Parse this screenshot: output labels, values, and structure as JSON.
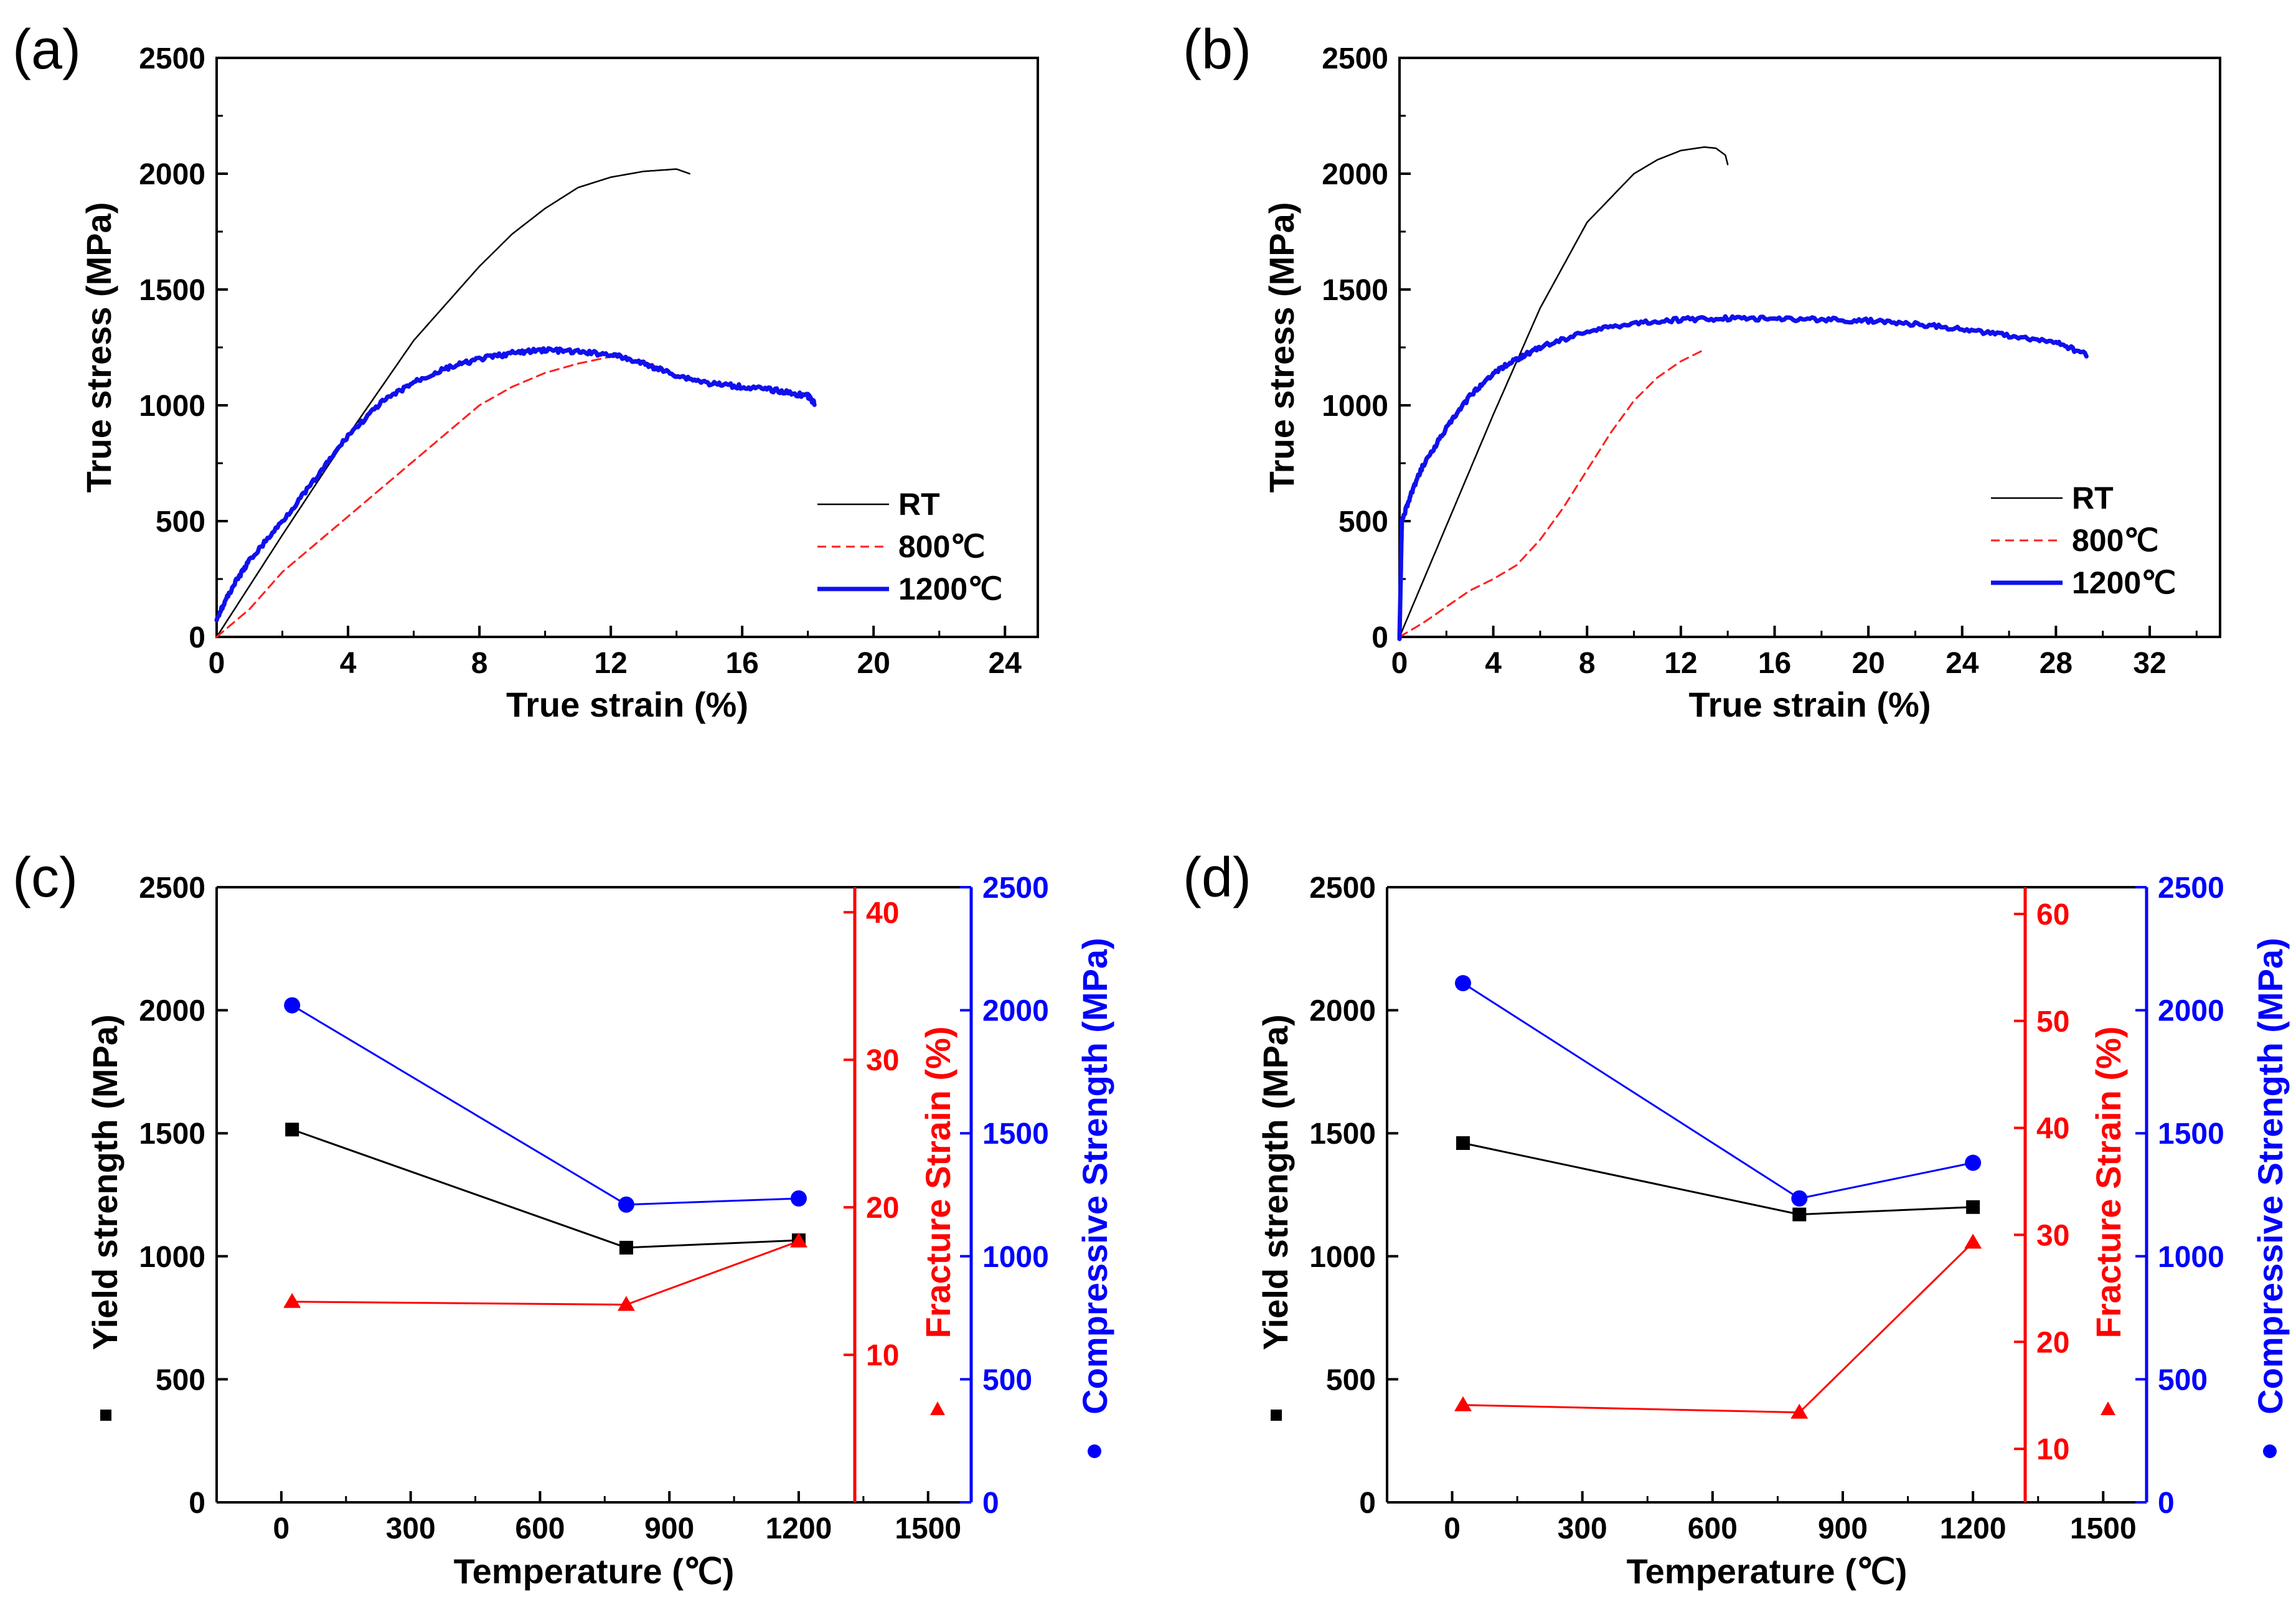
{
  "chart_data": [
    {
      "type": "line",
      "panel_label": "(a)",
      "xlabel": "True strain (%)",
      "ylabel": "True stress (MPa)",
      "xlim": [
        0,
        25
      ],
      "ylim": [
        0,
        2500
      ],
      "xticks": [
        "0",
        "4",
        "8",
        "12",
        "16",
        "20",
        "24"
      ],
      "yticks": [
        "0",
        "500",
        "1000",
        "1500",
        "2000",
        "2500"
      ],
      "legend_position": "bottom-right",
      "series": [
        {
          "name": "RT",
          "color": "#000000",
          "style": "solid",
          "x": [
            0,
            2,
            4,
            6,
            8,
            9,
            10,
            11,
            12,
            13,
            14,
            14.4
          ],
          "y": [
            0,
            440,
            870,
            1280,
            1600,
            1740,
            1850,
            1940,
            1985,
            2010,
            2020,
            2000
          ]
        },
        {
          "name": "800℃",
          "color": "#ff2020",
          "style": "dashed",
          "x": [
            0,
            1,
            2,
            4,
            6,
            7,
            8,
            9,
            10,
            11,
            12,
            13,
            14
          ],
          "y": [
            0,
            120,
            280,
            520,
            760,
            880,
            1000,
            1080,
            1140,
            1180,
            1210,
            1190,
            1130
          ]
        },
        {
          "name": "1200℃",
          "color": "#1010ee",
          "style": "thick",
          "x": [
            0,
            0.5,
            1,
            2,
            3,
            4,
            5,
            6,
            7,
            8,
            9,
            10,
            11,
            12,
            13,
            14,
            15,
            16,
            17,
            18,
            18.2
          ],
          "y": [
            80,
            220,
            330,
            500,
            680,
            870,
            1010,
            1100,
            1160,
            1200,
            1225,
            1240,
            1230,
            1220,
            1180,
            1130,
            1095,
            1080,
            1065,
            1040,
            1010
          ]
        }
      ]
    },
    {
      "type": "line",
      "panel_label": "(b)",
      "xlabel": "True strain (%)",
      "ylabel": "True stress (MPa)",
      "xlim": [
        0,
        35
      ],
      "ylim": [
        0,
        2500
      ],
      "xticks": [
        "0",
        "4",
        "8",
        "12",
        "16",
        "20",
        "24",
        "28",
        "32"
      ],
      "yticks": [
        "0",
        "500",
        "1000",
        "1500",
        "2000",
        "2500"
      ],
      "legend_position": "bottom-right",
      "series": [
        {
          "name": "RT",
          "color": "#000000",
          "style": "solid",
          "x": [
            0,
            2,
            4,
            6,
            8,
            10,
            11,
            12,
            13,
            13.5,
            13.9,
            14
          ],
          "y": [
            0,
            480,
            960,
            1420,
            1790,
            2000,
            2060,
            2100,
            2115,
            2110,
            2080,
            2040
          ]
        },
        {
          "name": "800℃",
          "color": "#ff2020",
          "style": "dashed",
          "x": [
            0,
            1,
            2,
            3,
            4,
            5,
            6,
            7,
            8,
            9,
            10,
            11,
            12,
            13
          ],
          "y": [
            0,
            60,
            130,
            200,
            250,
            310,
            420,
            560,
            720,
            880,
            1020,
            1120,
            1190,
            1240
          ]
        },
        {
          "name": "1200℃",
          "color": "#1010ee",
          "style": "thick",
          "x": [
            0,
            0.1,
            0.5,
            1,
            2,
            3,
            4,
            5,
            6,
            8,
            10,
            12,
            14,
            16,
            18,
            20,
            22,
            24,
            26,
            28,
            29.3
          ],
          "y": [
            0,
            500,
            620,
            740,
            900,
            1040,
            1140,
            1200,
            1250,
            1320,
            1355,
            1370,
            1375,
            1375,
            1370,
            1365,
            1350,
            1330,
            1300,
            1270,
            1220
          ]
        }
      ]
    },
    {
      "type": "line",
      "panel_label": "(c)",
      "xlabel": "Temperature (℃)",
      "ylabel_left": "Yield strength (MPa)",
      "ylabel_fracture": "Fracture Strain (%)",
      "ylabel_compressive": "Compressive Strength (MPa)",
      "xlim": [
        -150,
        1600
      ],
      "ylim_left": [
        0,
        2500
      ],
      "ylim_fracture": [
        0,
        41.7
      ],
      "ylim_compressive": [
        0,
        2500
      ],
      "xticks": [
        "0",
        "300",
        "600",
        "900",
        "1200",
        "1500"
      ],
      "yticks_left": [
        "0",
        "500",
        "1000",
        "1500",
        "2000",
        "2500"
      ],
      "yticks_fracture": [
        "10",
        "20",
        "30",
        "40"
      ],
      "yticks_compressive": [
        "0",
        "500",
        "1000",
        "1500",
        "2000",
        "2500"
      ],
      "series": [
        {
          "name": "Yield strength",
          "color": "#000000",
          "marker": "square",
          "axis": "left",
          "x": [
            25,
            800,
            1200
          ],
          "y": [
            1515,
            1035,
            1065
          ]
        },
        {
          "name": "Fracture Strain",
          "color": "#ff0000",
          "marker": "triangle",
          "axis": "fracture",
          "x": [
            25,
            800,
            1200
          ],
          "y": [
            13.6,
            13.4,
            17.7
          ]
        },
        {
          "name": "Compressive Strength",
          "color": "#0000ff",
          "marker": "circle",
          "axis": "compressive",
          "x": [
            25,
            800,
            1200
          ],
          "y": [
            2020,
            1210,
            1235
          ]
        }
      ]
    },
    {
      "type": "line",
      "panel_label": "(d)",
      "xlabel": "Temperature (℃)",
      "ylabel_left": "Yield strength (MPa)",
      "ylabel_fracture": "Fracture Strain (%)",
      "ylabel_compressive": "Compressive Strength (MPa)",
      "xlim": [
        -150,
        1600
      ],
      "ylim_left": [
        0,
        2500
      ],
      "ylim_fracture": [
        5,
        62.5
      ],
      "ylim_compressive": [
        0,
        2500
      ],
      "xticks": [
        "0",
        "300",
        "600",
        "900",
        "1200",
        "1500"
      ],
      "yticks_left": [
        "0",
        "500",
        "1000",
        "1500",
        "2000",
        "2500"
      ],
      "yticks_fracture": [
        "10",
        "20",
        "30",
        "40",
        "50",
        "60"
      ],
      "yticks_compressive": [
        "0",
        "500",
        "1000",
        "1500",
        "2000",
        "2500"
      ],
      "series": [
        {
          "name": "Yield strength",
          "color": "#000000",
          "marker": "square",
          "axis": "left",
          "x": [
            25,
            800,
            1200
          ],
          "y": [
            1460,
            1170,
            1200
          ]
        },
        {
          "name": "Fracture Strain",
          "color": "#ff0000",
          "marker": "triangle",
          "axis": "fracture",
          "x": [
            25,
            800,
            1200
          ],
          "y": [
            14.1,
            13.4,
            29.3
          ]
        },
        {
          "name": "Compressive Strength",
          "color": "#0000ff",
          "marker": "circle",
          "axis": "compressive",
          "x": [
            25,
            800,
            1200
          ],
          "y": [
            2110,
            1235,
            1380
          ]
        }
      ]
    }
  ]
}
